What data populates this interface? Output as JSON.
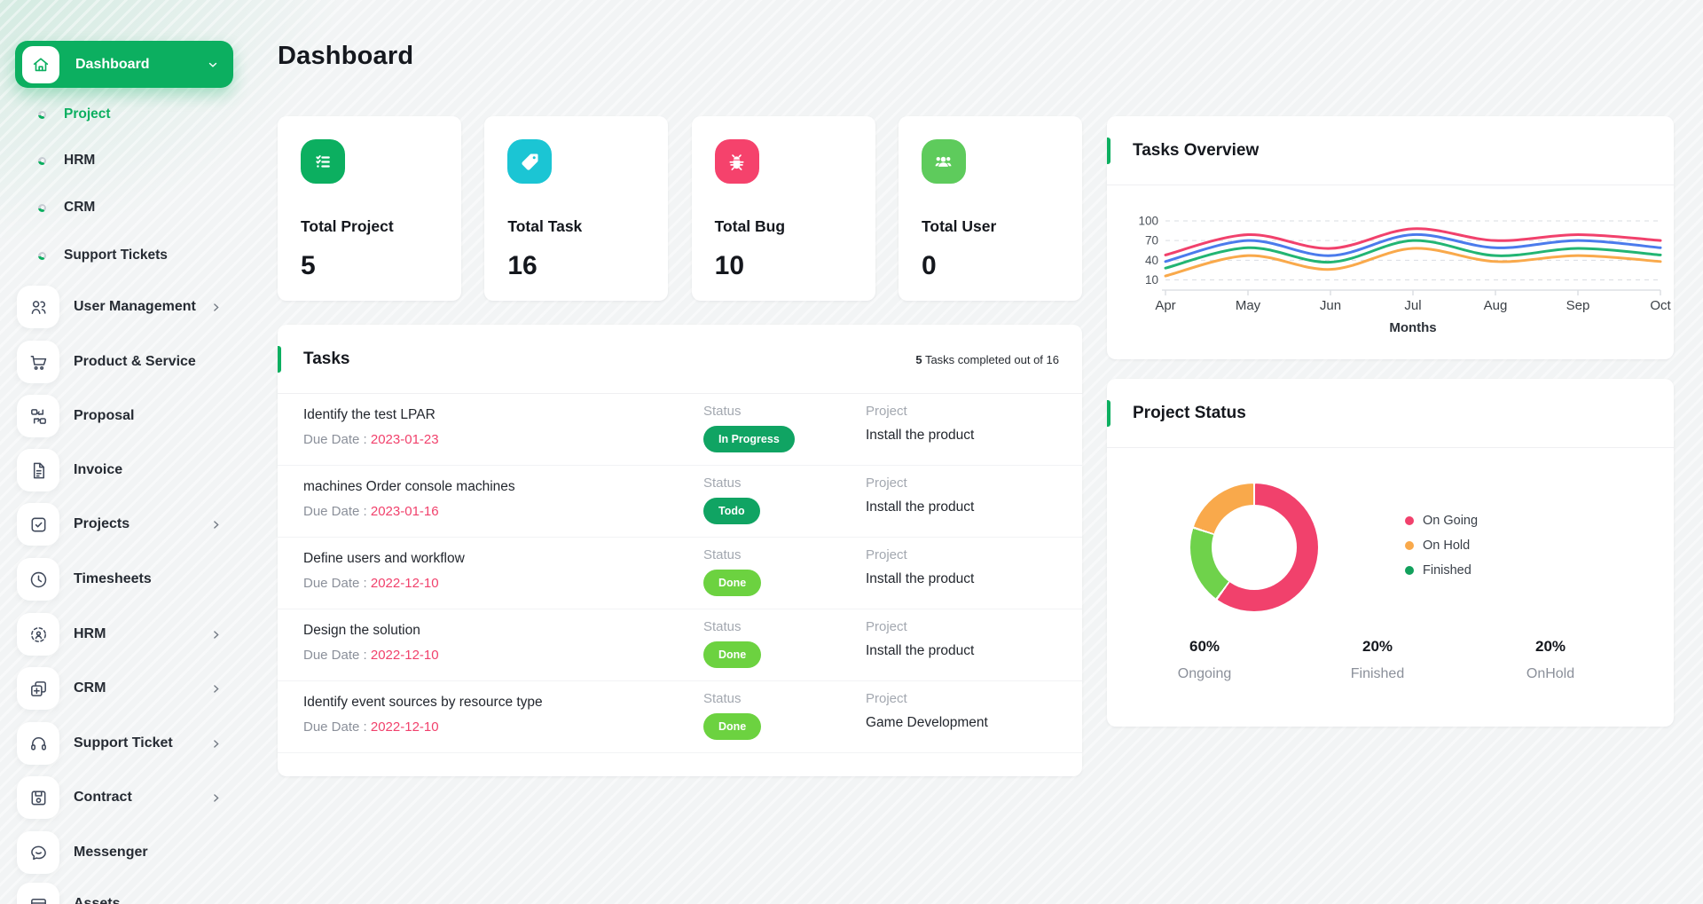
{
  "page": {
    "title": "Dashboard"
  },
  "sidebar": {
    "dashboard": {
      "label": "Dashboard"
    },
    "sub_items": [
      {
        "label": "Project",
        "active": true
      },
      {
        "label": "HRM",
        "active": false
      },
      {
        "label": "CRM",
        "active": false
      },
      {
        "label": "Support Tickets",
        "active": false
      }
    ],
    "items": [
      {
        "label": "User Management",
        "icon": "users-icon",
        "chevron": true
      },
      {
        "label": "Product & Service",
        "icon": "cart-icon",
        "chevron": false
      },
      {
        "label": "Proposal",
        "icon": "proposal-icon",
        "chevron": false
      },
      {
        "label": "Invoice",
        "icon": "invoice-icon",
        "chevron": false
      },
      {
        "label": "Projects",
        "icon": "check-square-icon",
        "chevron": true
      },
      {
        "label": "Timesheets",
        "icon": "clock-icon",
        "chevron": false
      },
      {
        "label": "HRM",
        "icon": "hrm-target-icon",
        "chevron": true
      },
      {
        "label": "CRM",
        "icon": "copy-plus-icon",
        "chevron": true
      },
      {
        "label": "Support Ticket",
        "icon": "headset-icon",
        "chevron": true
      },
      {
        "label": "Contract",
        "icon": "floppy-icon",
        "chevron": true
      },
      {
        "label": "Messenger",
        "icon": "chat-icon",
        "chevron": false
      },
      {
        "label": "Assets",
        "icon": "assets-icon",
        "chevron": false
      }
    ]
  },
  "stats": [
    {
      "label": "Total Project",
      "value": "5",
      "color": "#0CAF60",
      "icon": "checklist-icon"
    },
    {
      "label": "Total Task",
      "value": "16",
      "color": "#1BC5D4",
      "icon": "tag-icon"
    },
    {
      "label": "Total Bug",
      "value": "10",
      "color": "#F5426C",
      "icon": "bug-icon"
    },
    {
      "label": "Total User",
      "value": "0",
      "color": "#5ECB5C",
      "icon": "users-group-icon"
    }
  ],
  "tasks_panel": {
    "title": "Tasks",
    "summary_count": "5",
    "summary_rest": " Tasks completed out of 16",
    "due_label": "Due Date : ",
    "status_col": "Status",
    "project_col": "Project",
    "rows": [
      {
        "title": "Identify the test LPAR",
        "due": "2023-01-23",
        "status": "In Progress",
        "status_type": "progress",
        "project": "Install the product"
      },
      {
        "title": "machines Order console machines",
        "due": "2023-01-16",
        "status": "Todo",
        "status_type": "progress",
        "project": "Install the product"
      },
      {
        "title": "Define users and workflow",
        "due": "2022-12-10",
        "status": "Done",
        "status_type": "done",
        "project": "Install the product"
      },
      {
        "title": "Design the solution",
        "due": "2022-12-10",
        "status": "Done",
        "status_type": "done",
        "project": "Install the product"
      },
      {
        "title": "Identify event sources by resource type",
        "due": "2022-12-10",
        "status": "Done",
        "status_type": "done",
        "project": "Game Development"
      }
    ]
  },
  "overview_panel": {
    "title": "Tasks Overview"
  },
  "status_panel": {
    "title": "Project Status",
    "legend": [
      {
        "label": "On Going",
        "color": "#F1416C"
      },
      {
        "label": "On Hold",
        "color": "#F9A94B"
      },
      {
        "label": "Finished",
        "color": "#12A05C"
      }
    ],
    "summary": [
      {
        "percent": "60%",
        "label": "Ongoing"
      },
      {
        "percent": "20%",
        "label": "Finished"
      },
      {
        "percent": "20%",
        "label": "OnHold"
      }
    ]
  },
  "chart_data": [
    {
      "type": "line",
      "title": "Tasks Overview",
      "x": [
        "Apr",
        "May",
        "Jun",
        "Jul",
        "Aug",
        "Sep",
        "Oct"
      ],
      "xlabel": "Months",
      "yticks": [
        10,
        40,
        70,
        100
      ],
      "ylim": [
        0,
        110
      ],
      "grid": "dashed-horizontal",
      "legend_position": "none",
      "series": [
        {
          "name": "pink",
          "color": "#F1416C",
          "values": [
            48,
            79,
            58,
            88,
            70,
            79,
            70
          ]
        },
        {
          "name": "blue",
          "color": "#4B7BEC",
          "values": [
            38,
            70,
            47,
            79,
            59,
            70,
            59
          ]
        },
        {
          "name": "green",
          "color": "#22B573",
          "values": [
            28,
            59,
            37,
            70,
            47,
            58,
            48
          ]
        },
        {
          "name": "orange",
          "color": "#F9A94B",
          "values": [
            16,
            47,
            26,
            58,
            38,
            47,
            38
          ]
        }
      ]
    },
    {
      "type": "pie",
      "donut": true,
      "title": "Project Status",
      "labels": [
        "On Going",
        "Finished",
        "On Hold"
      ],
      "values": [
        60,
        20,
        20
      ],
      "colors": [
        "#F1416C",
        "#6FD24B",
        "#F9A94B"
      ],
      "start_angle": "top",
      "direction": "clockwise",
      "legend_position": "right"
    }
  ]
}
